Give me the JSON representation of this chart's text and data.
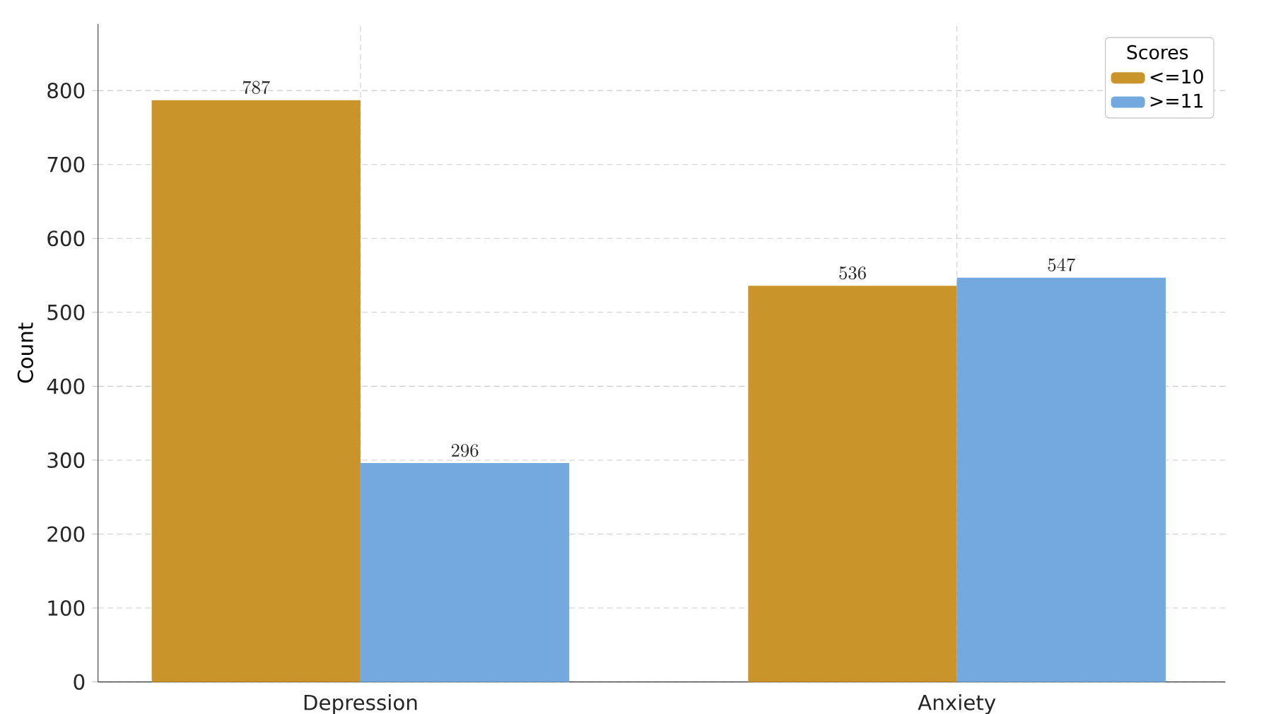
{
  "chart_data": {
    "type": "bar",
    "ylabel": "Count",
    "legend_title": "Scores",
    "categories": [
      "Depression",
      "Anxiety"
    ],
    "series": [
      {
        "name": "<=10",
        "color": "#c9952a",
        "values": [
          787,
          536
        ]
      },
      {
        "name": ">=11",
        "color": "#74a9e0",
        "values": [
          296,
          547
        ]
      }
    ],
    "ylim": [
      0,
      890
    ],
    "yticks": [
      0,
      100,
      200,
      300,
      400,
      500,
      600,
      700,
      800
    ],
    "grid": true,
    "legend": "top right",
    "data_labels": true
  }
}
